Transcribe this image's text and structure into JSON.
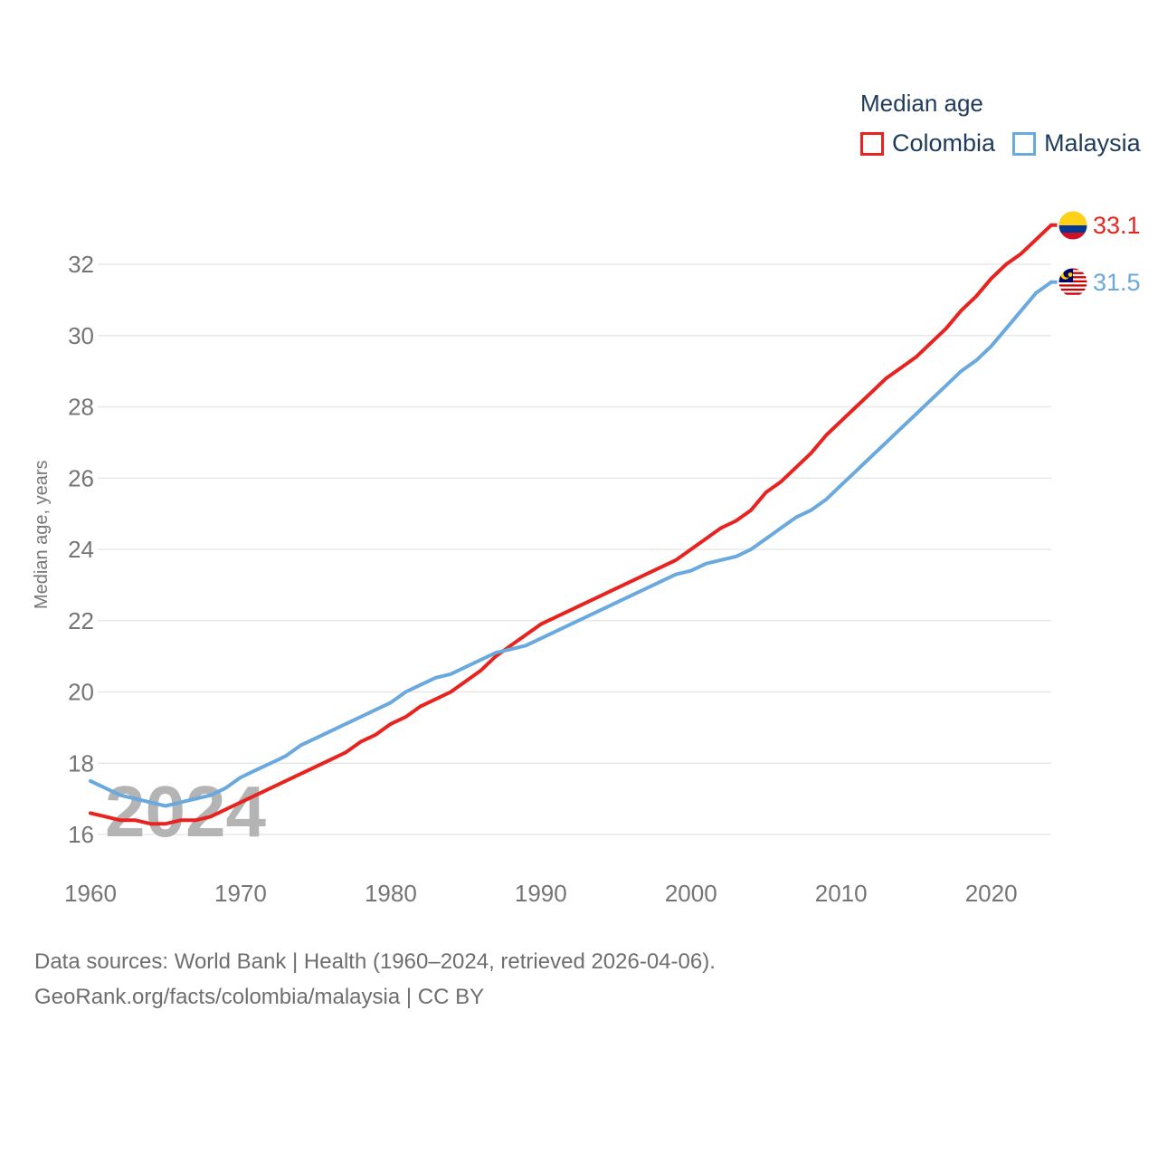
{
  "legend": {
    "title": "Median age",
    "items": [
      {
        "label": "Colombia",
        "color": "#e8231f"
      },
      {
        "label": "Malaysia",
        "color": "#6aa9de"
      }
    ]
  },
  "axis": {
    "y_label": "Median age, years"
  },
  "watermark": "2024",
  "end_labels": [
    {
      "series": "Colombia",
      "text": "33.1"
    },
    {
      "series": "Malaysia",
      "text": "31.5"
    }
  ],
  "footer": {
    "line1": "Data sources: World Bank | Health (1960–2024, retrieved 2026-04-06).",
    "line2": "GeoRank.org/facts/colombia/malaysia | CC BY"
  },
  "chart_data": {
    "type": "line",
    "title": "Median age",
    "xlabel": "",
    "ylabel": "Median age, years",
    "x_start": 1960,
    "x_end": 2024,
    "xticks": [
      1960,
      1970,
      1980,
      1990,
      2000,
      2010,
      2020
    ],
    "yticks": [
      16,
      18,
      20,
      22,
      24,
      26,
      28,
      30,
      32
    ],
    "ylim": [
      16,
      33.5
    ],
    "grid": true,
    "legend_position": "top-right",
    "series": [
      {
        "name": "Colombia",
        "color": "#e8231f",
        "end_value": 33.1,
        "values": [
          16.6,
          16.5,
          16.4,
          16.4,
          16.3,
          16.3,
          16.4,
          16.4,
          16.5,
          16.7,
          16.9,
          17.1,
          17.3,
          17.5,
          17.7,
          17.9,
          18.1,
          18.3,
          18.6,
          18.8,
          19.1,
          19.3,
          19.6,
          19.8,
          20.0,
          20.3,
          20.6,
          21.0,
          21.3,
          21.6,
          21.9,
          22.1,
          22.3,
          22.5,
          22.7,
          22.9,
          23.1,
          23.3,
          23.5,
          23.7,
          24.0,
          24.3,
          24.6,
          24.8,
          25.1,
          25.6,
          25.9,
          26.3,
          26.7,
          27.2,
          27.6,
          28.0,
          28.4,
          28.8,
          29.1,
          29.4,
          29.8,
          30.2,
          30.7,
          31.1,
          31.6,
          32.0,
          32.3,
          32.7,
          33.1
        ]
      },
      {
        "name": "Malaysia",
        "color": "#6aa9de",
        "end_value": 31.5,
        "values": [
          17.5,
          17.3,
          17.1,
          17.0,
          16.9,
          16.8,
          16.9,
          17.0,
          17.1,
          17.3,
          17.6,
          17.8,
          18.0,
          18.2,
          18.5,
          18.7,
          18.9,
          19.1,
          19.3,
          19.5,
          19.7,
          20.0,
          20.2,
          20.4,
          20.5,
          20.7,
          20.9,
          21.1,
          21.2,
          21.3,
          21.5,
          21.7,
          21.9,
          22.1,
          22.3,
          22.5,
          22.7,
          22.9,
          23.1,
          23.3,
          23.4,
          23.6,
          23.7,
          23.8,
          24.0,
          24.3,
          24.6,
          24.9,
          25.1,
          25.4,
          25.8,
          26.2,
          26.6,
          27.0,
          27.4,
          27.8,
          28.2,
          28.6,
          29.0,
          29.3,
          29.7,
          30.2,
          30.7,
          31.2,
          31.5
        ]
      }
    ]
  }
}
